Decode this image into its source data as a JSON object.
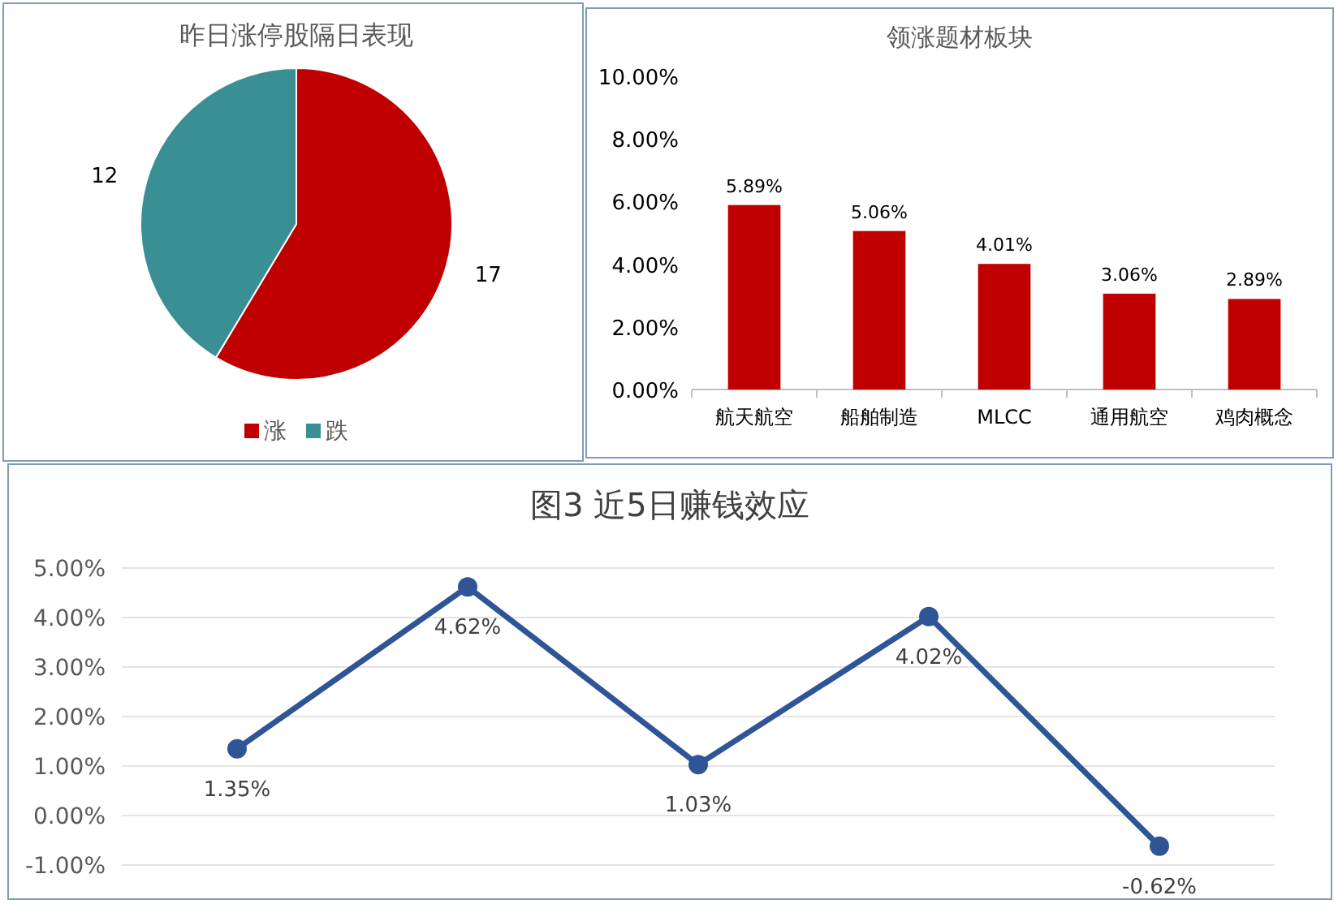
{
  "chart_data": [
    {
      "type": "pie",
      "title": "昨日涨停股隔日表现",
      "categories": [
        "涨",
        "跌"
      ],
      "values": [
        17,
        12
      ],
      "colors": [
        "#c00000",
        "#3a8f94"
      ],
      "data_labels": true,
      "legend": "bottom"
    },
    {
      "type": "bar",
      "title": "领涨题材板块",
      "categories": [
        "航天航空",
        "船舶制造",
        "MLCC",
        "通用航空",
        "鸡肉概念"
      ],
      "values": [
        5.89,
        5.06,
        4.01,
        3.06,
        2.89
      ],
      "color": "#c00000",
      "value_labels": [
        "5.89%",
        "5.06%",
        "4.01%",
        "3.06%",
        "2.89%"
      ],
      "ylim": [
        0,
        10
      ],
      "yticks": [
        {
          "value": 0,
          "label": "0.00%"
        },
        {
          "value": 2,
          "label": "2.00%"
        },
        {
          "value": 4,
          "label": "4.00%"
        },
        {
          "value": 6,
          "label": "6.00%"
        },
        {
          "value": 8,
          "label": "8.00%"
        },
        {
          "value": 10,
          "label": "10.00%"
        }
      ]
    },
    {
      "type": "line",
      "title": "图3 近5日赚钱效应",
      "categories": [
        null,
        null,
        null,
        null,
        null
      ],
      "values": [
        1.35,
        4.62,
        1.03,
        4.02,
        -0.62
      ],
      "color": "#2f5597",
      "marker": "circle",
      "line_style": "solid",
      "grid": "y",
      "value_labels": [
        "1.35%",
        "4.62%",
        "1.03%",
        "4.02%",
        "-0.62%"
      ],
      "ylim": [
        -1,
        5
      ],
      "yticks": [
        {
          "value": -1,
          "label": "-1.00%"
        },
        {
          "value": 0,
          "label": "0.00%"
        },
        {
          "value": 1,
          "label": "1.00%"
        },
        {
          "value": 2,
          "label": "2.00%"
        },
        {
          "value": 3,
          "label": "3.00%"
        },
        {
          "value": 4,
          "label": "4.00%"
        },
        {
          "value": 5,
          "label": "5.00%"
        }
      ]
    }
  ]
}
